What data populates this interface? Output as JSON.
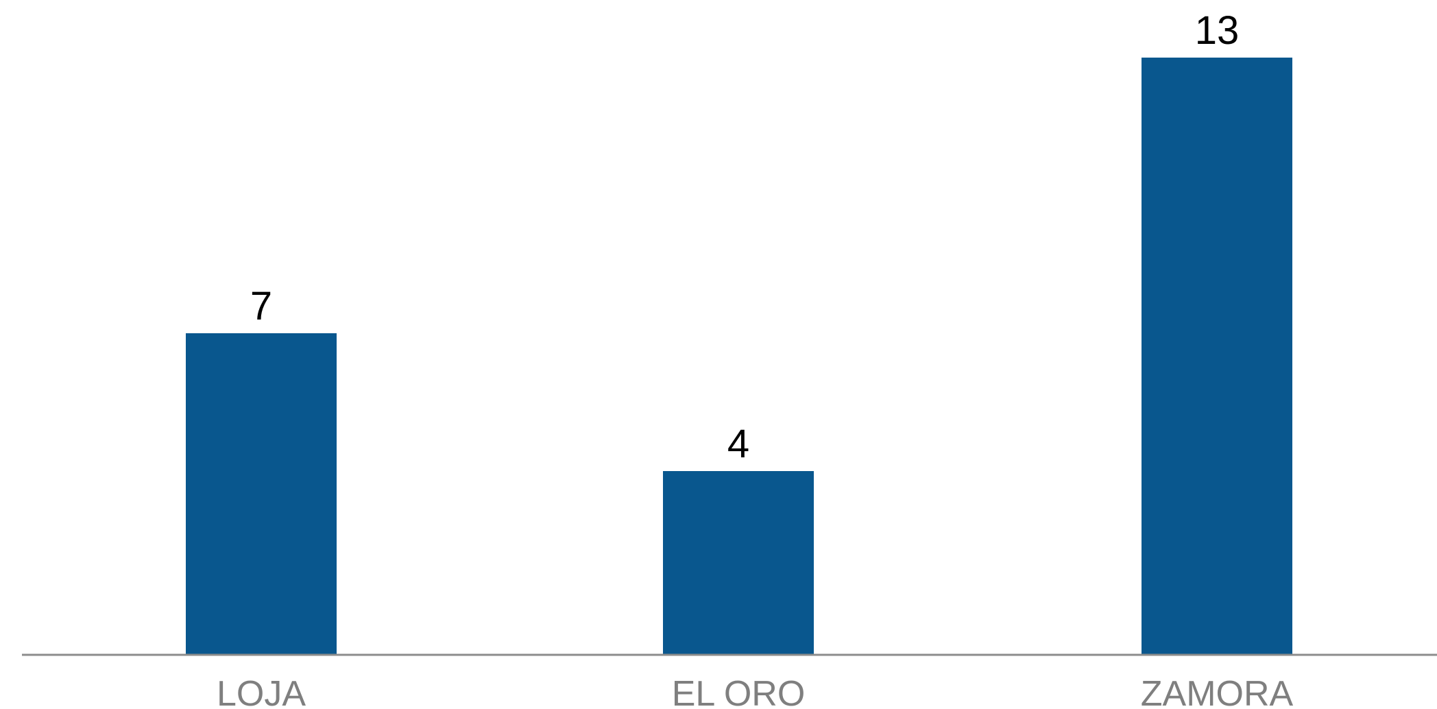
{
  "chart_data": {
    "type": "bar",
    "categories": [
      "LOJA",
      "EL ORO",
      "ZAMORA"
    ],
    "values": [
      7,
      4,
      13
    ],
    "data_labels": [
      "7",
      "4",
      "13"
    ],
    "title": "",
    "xlabel": "",
    "ylabel": "",
    "ylim": [
      0,
      13
    ],
    "grid": false,
    "legend": "none",
    "colors": {
      "bar": "#09578E",
      "axis": "#8C8C8C",
      "tick_label": "#7F7F7F",
      "value_label": "#000000"
    }
  }
}
